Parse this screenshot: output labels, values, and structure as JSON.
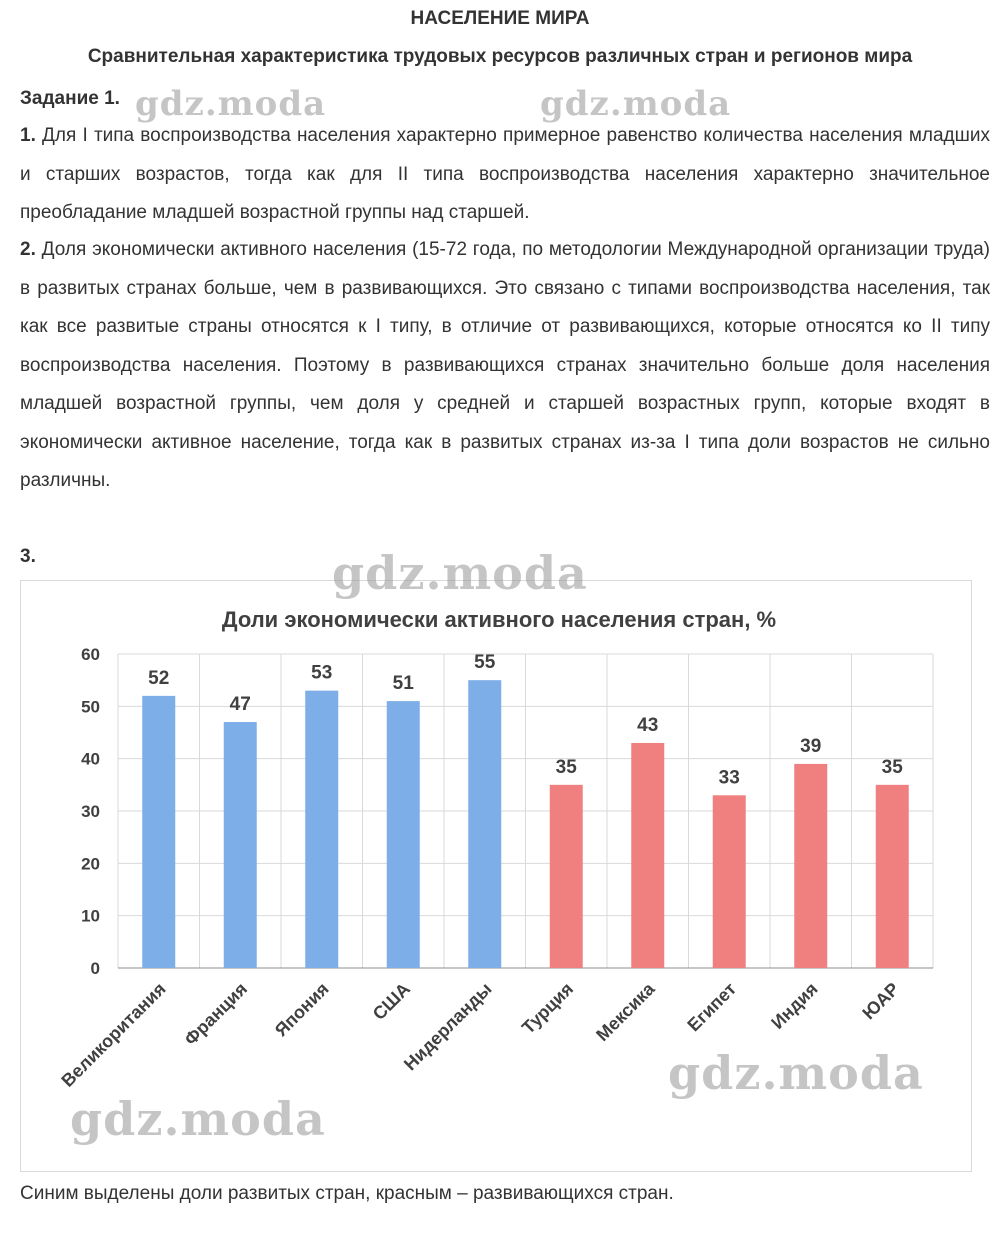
{
  "title": "НАСЕЛЕНИЕ МИРА",
  "subtitle": "Сравнительная характеристика трудовых ресурсов различных стран и регионов мира",
  "task_label": "Задание 1.",
  "paragraph1": {
    "num": "1.",
    "text": "Для I типа воспроизводства населения характерно примерное равенство количества населения младших и старших возрастов, тогда как для II типа воспроизводства населения характерно значительное преобладание младшей возрастной группы над старшей."
  },
  "paragraph2": {
    "num": "2.",
    "text": "Доля экономически активного населения (15-72 года, по методологии Международной организации труда) в развитых странах больше, чем в развивающихся. Это связано с типами воспроизводства населения, так как все развитые страны относятся к I типу, в отличие от развивающихся, которые относятся ко II типу воспроизводства населения. Поэтому в развивающихся странах значительно больше доля населения младшей возрастной группы, чем доля у средней и старшей возрастных групп, которые входят в экономически активное население, тогда как в развитых странах из-за I типа доли возрастов не сильно различны."
  },
  "paragraph3": {
    "num": "3."
  },
  "watermarks": [
    "gdz.moda",
    "gdz.moda",
    "gdz.moda",
    "gdz.moda",
    "gdz.moda"
  ],
  "chart_data": {
    "type": "bar",
    "title": "Доли экономически активного населения стран, %",
    "categories": [
      "Великоритания",
      "Франция",
      "Япония",
      "США",
      "Нидерланды",
      "Турция",
      "Мексика",
      "Египет",
      "Индия",
      "ЮАР"
    ],
    "values": [
      52,
      47,
      53,
      51,
      55,
      35,
      43,
      33,
      39,
      35
    ],
    "groups": [
      "developed",
      "developed",
      "developed",
      "developed",
      "developed",
      "developing",
      "developing",
      "developing",
      "developing",
      "developing"
    ],
    "colors": {
      "developed": "#7eaee8",
      "developing": "#f08080"
    },
    "ylim": [
      0,
      60
    ],
    "yticks": [
      0,
      10,
      20,
      30,
      40,
      50,
      60
    ],
    "xlabel": "",
    "ylabel": "",
    "grid": true,
    "data_labels": true
  },
  "footer": "Синим выделены доли развитых стран, красным – развивающихся стран."
}
